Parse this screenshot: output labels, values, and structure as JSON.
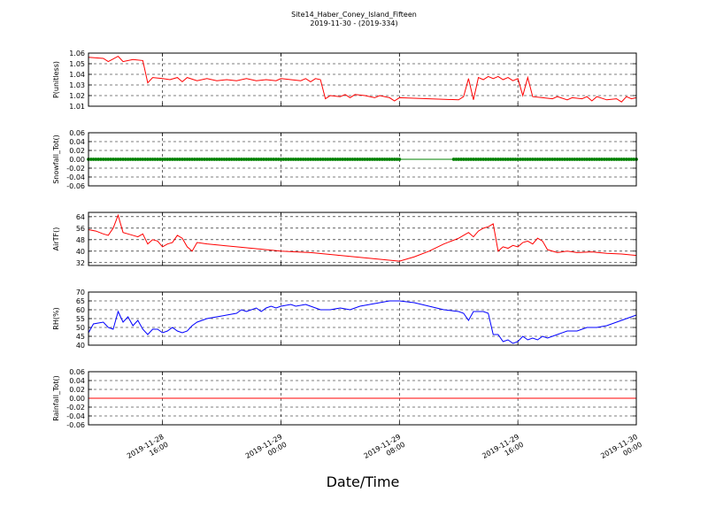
{
  "figure": {
    "title": "Site14_Haber_Coney_Island_Fifteen",
    "subtitle": "2019-11-30 - (2019-334)",
    "xlabel": "Date/Time"
  },
  "chart_data": {
    "type": "line",
    "x_axis": {
      "range": [
        "2019-11-28 11:00",
        "2019-11-30 00:00"
      ],
      "ticks": [
        {
          "t": "2019-11-28 16:00",
          "line1": "2019-11-28",
          "line2": "16:00"
        },
        {
          "t": "2019-11-29 00:00",
          "line1": "2019-11-29",
          "line2": "00:00"
        },
        {
          "t": "2019-11-29 08:00",
          "line1": "2019-11-29",
          "line2": "08:00"
        },
        {
          "t": "2019-11-29 16:00",
          "line1": "2019-11-29",
          "line2": "16:00"
        },
        {
          "t": "2019-11-30 00:00",
          "line1": "2019-11-30",
          "line2": "00:00"
        }
      ]
    },
    "panels": [
      {
        "ylabel": "P(unitless)",
        "ylim": [
          1.01,
          1.06
        ],
        "yticks": [
          "1.01",
          "1.02",
          "1.03",
          "1.04",
          "1.05",
          "1.06"
        ],
        "color": "#ff0000",
        "marker": "none",
        "grid": true,
        "points": [
          [
            "2019-11-28 11:00",
            1.056
          ],
          [
            "2019-11-28 12:00",
            1.055
          ],
          [
            "2019-11-28 12:20",
            1.052
          ],
          [
            "2019-11-28 13:00",
            1.057
          ],
          [
            "2019-11-28 13:20",
            1.052
          ],
          [
            "2019-11-28 14:00",
            1.054
          ],
          [
            "2019-11-28 14:40",
            1.053
          ],
          [
            "2019-11-28 15:00",
            1.032
          ],
          [
            "2019-11-28 15:20",
            1.037
          ],
          [
            "2019-11-28 16:00",
            1.036
          ],
          [
            "2019-11-28 16:30",
            1.035
          ],
          [
            "2019-11-28 17:00",
            1.037
          ],
          [
            "2019-11-28 17:20",
            1.033
          ],
          [
            "2019-11-28 17:40",
            1.037
          ],
          [
            "2019-11-28 18:20",
            1.034
          ],
          [
            "2019-11-28 19:00",
            1.036
          ],
          [
            "2019-11-28 19:40",
            1.034
          ],
          [
            "2019-11-28 20:20",
            1.035
          ],
          [
            "2019-11-28 21:00",
            1.034
          ],
          [
            "2019-11-28 21:40",
            1.036
          ],
          [
            "2019-11-28 22:20",
            1.034
          ],
          [
            "2019-11-28 23:00",
            1.035
          ],
          [
            "2019-11-28 23:40",
            1.034
          ],
          [
            "2019-11-29 00:00",
            1.036
          ],
          [
            "2019-11-29 00:40",
            1.035
          ],
          [
            "2019-11-29 01:20",
            1.034
          ],
          [
            "2019-11-29 01:40",
            1.036
          ],
          [
            "2019-11-29 02:00",
            1.033
          ],
          [
            "2019-11-29 02:20",
            1.036
          ],
          [
            "2019-11-29 02:40",
            1.035
          ],
          [
            "2019-11-29 03:00",
            1.017
          ],
          [
            "2019-11-29 03:20",
            1.02
          ],
          [
            "2019-11-29 04:00",
            1.019
          ],
          [
            "2019-11-29 04:20",
            1.021
          ],
          [
            "2019-11-29 04:40",
            1.018
          ],
          [
            "2019-11-29 05:00",
            1.021
          ],
          [
            "2019-11-29 05:40",
            1.02
          ],
          [
            "2019-11-29 06:20",
            1.018
          ],
          [
            "2019-11-29 06:40",
            1.02
          ],
          [
            "2019-11-29 07:20",
            1.018
          ],
          [
            "2019-11-29 07:40",
            1.015
          ],
          [
            "2019-11-29 08:00",
            1.018
          ],
          [
            "2019-11-29 10:00",
            1.017
          ],
          [
            "2019-11-29 12:00",
            1.016
          ],
          [
            "2019-11-29 12:20",
            1.019
          ],
          [
            "2019-11-29 12:40",
            1.036
          ],
          [
            "2019-11-29 13:00",
            1.016
          ],
          [
            "2019-11-29 13:20",
            1.037
          ],
          [
            "2019-11-29 13:40",
            1.035
          ],
          [
            "2019-11-29 14:00",
            1.038
          ],
          [
            "2019-11-29 14:20",
            1.036
          ],
          [
            "2019-11-29 14:40",
            1.038
          ],
          [
            "2019-11-29 15:00",
            1.035
          ],
          [
            "2019-11-29 15:20",
            1.037
          ],
          [
            "2019-11-29 15:40",
            1.034
          ],
          [
            "2019-11-29 16:00",
            1.036
          ],
          [
            "2019-11-29 16:20",
            1.02
          ],
          [
            "2019-11-29 16:40",
            1.037
          ],
          [
            "2019-11-29 17:00",
            1.019
          ],
          [
            "2019-11-29 17:40",
            1.018
          ],
          [
            "2019-11-29 18:20",
            1.017
          ],
          [
            "2019-11-29 18:40",
            1.019
          ],
          [
            "2019-11-29 19:20",
            1.016
          ],
          [
            "2019-11-29 19:40",
            1.018
          ],
          [
            "2019-11-29 20:20",
            1.017
          ],
          [
            "2019-11-29 20:40",
            1.019
          ],
          [
            "2019-11-29 21:00",
            1.015
          ],
          [
            "2019-11-29 21:20",
            1.019
          ],
          [
            "2019-11-29 22:00",
            1.016
          ],
          [
            "2019-11-29 22:40",
            1.017
          ],
          [
            "2019-11-29 23:00",
            1.014
          ],
          [
            "2019-11-29 23:20",
            1.019
          ],
          [
            "2019-11-29 23:40",
            1.017
          ],
          [
            "2019-11-30 00:00",
            1.018
          ]
        ]
      },
      {
        "ylabel": "Snowfall_Tot()",
        "ylim": [
          -0.06,
          0.06
        ],
        "yticks": [
          "-0.06",
          "-0.04",
          "-0.02",
          "0.00",
          "0.02",
          "0.04",
          "0.06"
        ],
        "color": "#008000",
        "marker": "dot",
        "grid": true,
        "constant_value": 0.0,
        "line_range": [
          "2019-11-28 11:00",
          "2019-11-30 00:00"
        ],
        "marker_ranges": [
          [
            "2019-11-28 11:00",
            "2019-11-29 08:00"
          ],
          [
            "2019-11-29 11:40",
            "2019-11-30 00:00"
          ]
        ],
        "marker_step_minutes": 10
      },
      {
        "ylabel": "AirTF()",
        "ylim": [
          30,
          67
        ],
        "yticks": [
          "32",
          "40",
          "48",
          "56",
          "64"
        ],
        "color": "#ff0000",
        "marker": "none",
        "grid": true,
        "points": [
          [
            "2019-11-28 11:00",
            55
          ],
          [
            "2019-11-28 11:30",
            54
          ],
          [
            "2019-11-28 12:00",
            52
          ],
          [
            "2019-11-28 12:20",
            51
          ],
          [
            "2019-11-28 12:40",
            56
          ],
          [
            "2019-11-28 13:00",
            65
          ],
          [
            "2019-11-28 13:20",
            53
          ],
          [
            "2019-11-28 13:40",
            52
          ],
          [
            "2019-11-28 14:00",
            51
          ],
          [
            "2019-11-28 14:20",
            50
          ],
          [
            "2019-11-28 14:40",
            52
          ],
          [
            "2019-11-28 15:00",
            45
          ],
          [
            "2019-11-28 15:20",
            48
          ],
          [
            "2019-11-28 15:40",
            47
          ],
          [
            "2019-11-28 16:00",
            43
          ],
          [
            "2019-11-28 16:20",
            45
          ],
          [
            "2019-11-28 16:40",
            46
          ],
          [
            "2019-11-28 17:00",
            51
          ],
          [
            "2019-11-28 17:20",
            49
          ],
          [
            "2019-11-28 17:40",
            43
          ],
          [
            "2019-11-28 18:00",
            40
          ],
          [
            "2019-11-28 18:20",
            46
          ],
          [
            "2019-11-28 19:00",
            45
          ],
          [
            "2019-11-28 20:00",
            44
          ],
          [
            "2019-11-28 21:00",
            43
          ],
          [
            "2019-11-28 22:00",
            42
          ],
          [
            "2019-11-28 23:00",
            41
          ],
          [
            "2019-11-29 00:00",
            40
          ],
          [
            "2019-11-29 01:00",
            39.5
          ],
          [
            "2019-11-29 02:00",
            39
          ],
          [
            "2019-11-29 03:00",
            38
          ],
          [
            "2019-11-29 04:00",
            37
          ],
          [
            "2019-11-29 05:00",
            36
          ],
          [
            "2019-11-29 06:00",
            35
          ],
          [
            "2019-11-29 07:00",
            34
          ],
          [
            "2019-11-29 08:00",
            33
          ],
          [
            "2019-11-29 09:00",
            36
          ],
          [
            "2019-11-29 10:00",
            40
          ],
          [
            "2019-11-29 11:00",
            45
          ],
          [
            "2019-11-29 12:00",
            49
          ],
          [
            "2019-11-29 12:20",
            51
          ],
          [
            "2019-11-29 12:40",
            53
          ],
          [
            "2019-11-29 13:00",
            50
          ],
          [
            "2019-11-29 13:20",
            54
          ],
          [
            "2019-11-29 13:40",
            56
          ],
          [
            "2019-11-29 14:00",
            57
          ],
          [
            "2019-11-29 14:20",
            59
          ],
          [
            "2019-11-29 14:40",
            40
          ],
          [
            "2019-11-29 15:00",
            43
          ],
          [
            "2019-11-29 15:20",
            42
          ],
          [
            "2019-11-29 15:40",
            44
          ],
          [
            "2019-11-29 16:00",
            43
          ],
          [
            "2019-11-29 16:20",
            46
          ],
          [
            "2019-11-29 16:40",
            47
          ],
          [
            "2019-11-29 17:00",
            45
          ],
          [
            "2019-11-29 17:20",
            49
          ],
          [
            "2019-11-29 17:40",
            47
          ],
          [
            "2019-11-29 18:00",
            41
          ],
          [
            "2019-11-29 18:40",
            39
          ],
          [
            "2019-11-29 19:20",
            40
          ],
          [
            "2019-11-29 20:00",
            39
          ],
          [
            "2019-11-29 21:00",
            39.5
          ],
          [
            "2019-11-29 22:00",
            38.5
          ],
          [
            "2019-11-29 23:00",
            38
          ],
          [
            "2019-11-30 00:00",
            37
          ]
        ]
      },
      {
        "ylabel": "RH(%)",
        "ylim": [
          40,
          70
        ],
        "yticks": [
          "40",
          "45",
          "50",
          "55",
          "60",
          "65",
          "70"
        ],
        "color": "#0000ff",
        "marker": "none",
        "grid": true,
        "points": [
          [
            "2019-11-28 11:00",
            47
          ],
          [
            "2019-11-28 11:20",
            52
          ],
          [
            "2019-11-28 12:00",
            53
          ],
          [
            "2019-11-28 12:20",
            50
          ],
          [
            "2019-11-28 12:40",
            49
          ],
          [
            "2019-11-28 13:00",
            59
          ],
          [
            "2019-11-28 13:20",
            53
          ],
          [
            "2019-11-28 13:40",
            56
          ],
          [
            "2019-11-28 14:00",
            51
          ],
          [
            "2019-11-28 14:20",
            54
          ],
          [
            "2019-11-28 14:40",
            49
          ],
          [
            "2019-11-28 15:00",
            46
          ],
          [
            "2019-11-28 15:20",
            49
          ],
          [
            "2019-11-28 15:40",
            49
          ],
          [
            "2019-11-28 16:00",
            47
          ],
          [
            "2019-11-28 16:20",
            48
          ],
          [
            "2019-11-28 16:40",
            50
          ],
          [
            "2019-11-28 17:00",
            48
          ],
          [
            "2019-11-28 17:20",
            47
          ],
          [
            "2019-11-28 17:40",
            48
          ],
          [
            "2019-11-28 18:00",
            51
          ],
          [
            "2019-11-28 18:20",
            53
          ],
          [
            "2019-11-28 19:00",
            55
          ],
          [
            "2019-11-28 19:40",
            56
          ],
          [
            "2019-11-28 20:20",
            57
          ],
          [
            "2019-11-28 21:00",
            58
          ],
          [
            "2019-11-28 21:20",
            60
          ],
          [
            "2019-11-28 21:40",
            59
          ],
          [
            "2019-11-28 22:20",
            61
          ],
          [
            "2019-11-28 22:40",
            59
          ],
          [
            "2019-11-28 23:00",
            61
          ],
          [
            "2019-11-28 23:20",
            62
          ],
          [
            "2019-11-28 23:40",
            61
          ],
          [
            "2019-11-29 00:00",
            62
          ],
          [
            "2019-11-29 00:40",
            63
          ],
          [
            "2019-11-29 01:00",
            62
          ],
          [
            "2019-11-29 01:40",
            63
          ],
          [
            "2019-11-29 02:00",
            62
          ],
          [
            "2019-11-29 02:40",
            60
          ],
          [
            "2019-11-29 03:20",
            60
          ],
          [
            "2019-11-29 04:00",
            61
          ],
          [
            "2019-11-29 04:40",
            60
          ],
          [
            "2019-11-29 05:20",
            62
          ],
          [
            "2019-11-29 06:00",
            63
          ],
          [
            "2019-11-29 06:40",
            64
          ],
          [
            "2019-11-29 07:20",
            65
          ],
          [
            "2019-11-29 08:00",
            65
          ],
          [
            "2019-11-29 09:00",
            64
          ],
          [
            "2019-11-29 10:00",
            62
          ],
          [
            "2019-11-29 11:00",
            60
          ],
          [
            "2019-11-29 12:00",
            59
          ],
          [
            "2019-11-29 12:20",
            58
          ],
          [
            "2019-11-29 12:40",
            54
          ],
          [
            "2019-11-29 13:00",
            59
          ],
          [
            "2019-11-29 13:40",
            59
          ],
          [
            "2019-11-29 14:00",
            58
          ],
          [
            "2019-11-29 14:20",
            46
          ],
          [
            "2019-11-29 14:40",
            46
          ],
          [
            "2019-11-29 15:00",
            42
          ],
          [
            "2019-11-29 15:20",
            43
          ],
          [
            "2019-11-29 15:40",
            41
          ],
          [
            "2019-11-29 16:00",
            42
          ],
          [
            "2019-11-29 16:20",
            45
          ],
          [
            "2019-11-29 16:40",
            43
          ],
          [
            "2019-11-29 17:00",
            44
          ],
          [
            "2019-11-29 17:20",
            43
          ],
          [
            "2019-11-29 17:40",
            45
          ],
          [
            "2019-11-29 18:00",
            44
          ],
          [
            "2019-11-29 18:40",
            46
          ],
          [
            "2019-11-29 19:20",
            48
          ],
          [
            "2019-11-29 20:00",
            48
          ],
          [
            "2019-11-29 20:40",
            50
          ],
          [
            "2019-11-29 21:20",
            50
          ],
          [
            "2019-11-29 22:00",
            51
          ],
          [
            "2019-11-29 22:40",
            53
          ],
          [
            "2019-11-29 23:00",
            54
          ],
          [
            "2019-11-29 23:20",
            55
          ],
          [
            "2019-11-29 23:40",
            56
          ],
          [
            "2019-11-30 00:00",
            57
          ]
        ]
      },
      {
        "ylabel": "Rainfall_Tot()",
        "ylim": [
          -0.06,
          0.06
        ],
        "yticks": [
          "-0.06",
          "-0.04",
          "-0.02",
          "0.00",
          "0.02",
          "0.04",
          "0.06"
        ],
        "color": "#ff0000",
        "marker": "none",
        "grid": true,
        "constant_value": 0.0,
        "line_range": [
          "2019-11-28 11:00",
          "2019-11-30 00:00"
        ]
      }
    ]
  }
}
